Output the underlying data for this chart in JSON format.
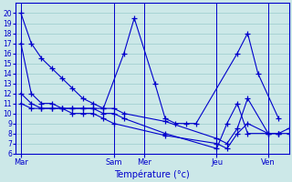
{
  "xlabel": "Température (°c)",
  "background_color": "#cce8e8",
  "grid_color": "#99cccc",
  "line_color": "#0000cc",
  "ylim": [
    6,
    21
  ],
  "yticks": [
    6,
    7,
    8,
    9,
    10,
    11,
    12,
    13,
    14,
    15,
    16,
    17,
    18,
    19,
    20
  ],
  "day_labels": [
    "Mar",
    "Sam",
    "Mer",
    "Jeu",
    "Ven"
  ],
  "day_positions": [
    0,
    9,
    12,
    19,
    24
  ],
  "xlim": [
    -0.5,
    26
  ],
  "series": [
    [
      20,
      17,
      15.5,
      14.5,
      13.5,
      12.5,
      11.5,
      11,
      10.5,
      16,
      19.5,
      13,
      9.5,
      9,
      9,
      9,
      16,
      18,
      14,
      9.5
    ],
    [
      17,
      12,
      11,
      11,
      10.5,
      10.5,
      10.5,
      10.5,
      10.5,
      10.5,
      10,
      9.2,
      7.5,
      7,
      8.5,
      11.5,
      8,
      8,
      8.5
    ],
    [
      12,
      11,
      10.5,
      10.5,
      10.5,
      10.5,
      10.5,
      10.5,
      10,
      10,
      9.5,
      8,
      6.5,
      9,
      11,
      8,
      8,
      8
    ],
    [
      11,
      10.5,
      10.5,
      10.5,
      10.5,
      10,
      10,
      10,
      9.5,
      9,
      7.8,
      7,
      6.5,
      8,
      9,
      8,
      8,
      8
    ]
  ],
  "x_series": [
    [
      0,
      1,
      2,
      3,
      4,
      5,
      6,
      7,
      8,
      10,
      11,
      13,
      14,
      15,
      16,
      17,
      21,
      22,
      23,
      25
    ],
    [
      0,
      1,
      2,
      3,
      4,
      5,
      6,
      7,
      8,
      9,
      10,
      14,
      19,
      20,
      21,
      22,
      24,
      25,
      26
    ],
    [
      0,
      1,
      2,
      3,
      4,
      5,
      6,
      7,
      8,
      9,
      10,
      14,
      19,
      20,
      21,
      22,
      24,
      25
    ],
    [
      0,
      1,
      2,
      3,
      4,
      5,
      6,
      7,
      8,
      9,
      14,
      19,
      20,
      21,
      22,
      24,
      25,
      26
    ]
  ]
}
